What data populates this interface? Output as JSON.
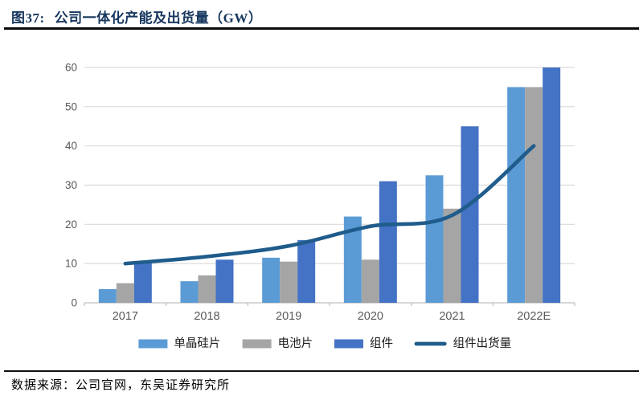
{
  "header": {
    "figure_label": "图37:",
    "title": "公司一体化产能及出货量（GW）"
  },
  "source": {
    "text": "数据来源：公司官网，东吴证券研究所"
  },
  "colors": {
    "title_navy": "#17375E",
    "rule_black": "#0a0a0a",
    "grid_gray": "#D9D9D9",
    "axis_gray": "#BFBFBF",
    "tick_label_gray": "#595959",
    "legend_text": "#1a1a1a"
  },
  "chart_data": {
    "type": "bar",
    "title": "公司一体化产能及出货量（GW）",
    "xlabel": "",
    "ylabel": "",
    "categories": [
      "2017",
      "2018",
      "2019",
      "2020",
      "2021",
      "2022E"
    ],
    "series": [
      {
        "id": "wafer",
        "name": "单晶硅片",
        "type": "bar",
        "color": "#5B9BD5",
        "values": [
          3.5,
          5.5,
          11.5,
          22,
          32.5,
          55
        ]
      },
      {
        "id": "cell",
        "name": "电池片",
        "type": "bar",
        "color": "#A5A5A5",
        "values": [
          5,
          7,
          10.5,
          11,
          24,
          55
        ]
      },
      {
        "id": "module",
        "name": "组件",
        "type": "bar",
        "color": "#4472C4",
        "values": [
          10.5,
          11,
          16,
          31,
          45,
          60
        ]
      },
      {
        "id": "module-shipments",
        "name": "组件出货量",
        "type": "line",
        "color": "#1F5C8B",
        "values": [
          10,
          11.8,
          14.5,
          19.5,
          22.3,
          40
        ]
      }
    ],
    "ylim": [
      0,
      60
    ],
    "yticks": [
      0,
      10,
      20,
      30,
      40,
      50,
      60
    ],
    "grid": true,
    "line_smooth": true,
    "legend_position": "bottom"
  }
}
